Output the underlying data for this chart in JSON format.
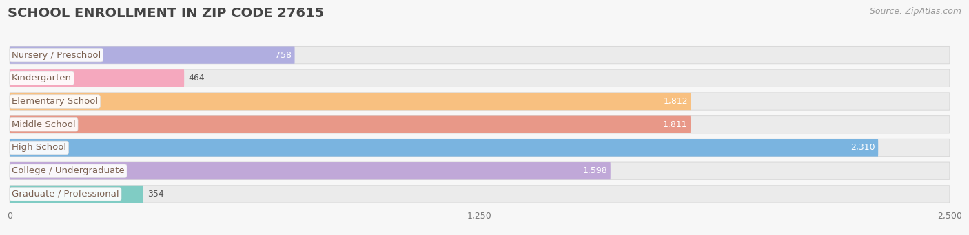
{
  "title": "SCHOOL ENROLLMENT IN ZIP CODE 27615",
  "source": "Source: ZipAtlas.com",
  "categories": [
    "Nursery / Preschool",
    "Kindergarten",
    "Elementary School",
    "Middle School",
    "High School",
    "College / Undergraduate",
    "Graduate / Professional"
  ],
  "values": [
    758,
    464,
    1812,
    1811,
    2310,
    1598,
    354
  ],
  "bar_colors": [
    "#b0aee0",
    "#f5a8be",
    "#f8c080",
    "#e89888",
    "#7ab4e0",
    "#c0a8d8",
    "#80ccc4"
  ],
  "label_text_color": "#7a6050",
  "value_color_inside": "#ffffff",
  "value_color_outside": "#555555",
  "xlim_max": 2500,
  "xticks": [
    0,
    1250,
    2500
  ],
  "title_fontsize": 14,
  "source_fontsize": 9,
  "label_fontsize": 9.5,
  "value_fontsize": 9,
  "bg_color": "#f7f7f7",
  "bar_bg_color": "#ebebeb",
  "bar_bg_edge": "#d8d8d8",
  "grid_color": "#d5d5d5"
}
